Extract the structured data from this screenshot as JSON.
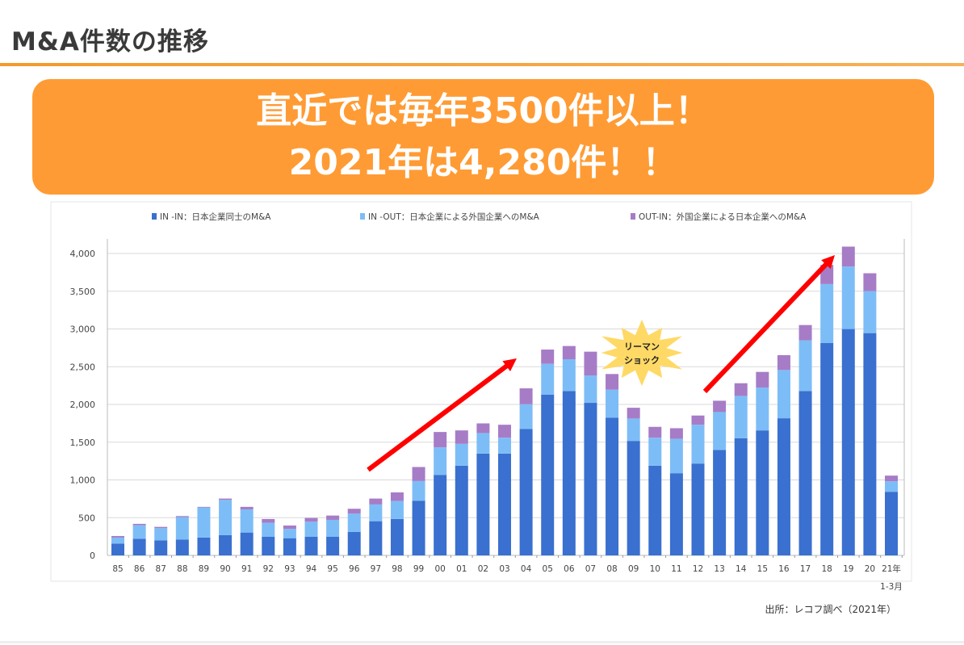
{
  "header": {
    "title": "M&A件数の推移"
  },
  "banner": {
    "line1": "直近では毎年3500件以上！",
    "line2": "2021年は4,280件！！"
  },
  "annotation": {
    "lehman_line1": "リーマン",
    "lehman_line2": "ショック"
  },
  "source": "出所：レコフ調べ（2021年）",
  "colors": {
    "in_in": "#3a70cf",
    "in_out": "#7dbdf7",
    "out_in": "#a77cc6",
    "arrow": "#ff0000",
    "burst": "#ffd966",
    "banner": "#ff9b34"
  },
  "chart_data": {
    "type": "bar",
    "stacked": true,
    "categories": [
      "85",
      "86",
      "87",
      "88",
      "89",
      "90",
      "91",
      "92",
      "93",
      "94",
      "95",
      "96",
      "97",
      "98",
      "99",
      "00",
      "01",
      "02",
      "03",
      "04",
      "05",
      "06",
      "07",
      "08",
      "09",
      "10",
      "11",
      "12",
      "13",
      "14",
      "15",
      "16",
      "17",
      "18",
      "19",
      "20",
      "21年"
    ],
    "last_category_sublabel": "1-3月",
    "series": [
      {
        "name": "IN -IN：日本企業同士のM&A",
        "values": [
          157,
          221,
          200,
          211,
          236,
          268,
          303,
          246,
          228,
          246,
          246,
          311,
          453,
          482,
          725,
          1067,
          1189,
          1349,
          1349,
          1674,
          2131,
          2178,
          2021,
          1824,
          1517,
          1189,
          1089,
          1217,
          1396,
          1553,
          1656,
          1817,
          2178,
          2813,
          2999,
          2945,
          843
        ]
      },
      {
        "name": "IN -OUT：日本企業による外国企業へのM&A",
        "values": [
          79,
          179,
          161,
          296,
          400,
          467,
          307,
          186,
          122,
          200,
          225,
          242,
          222,
          239,
          260,
          365,
          289,
          272,
          211,
          329,
          407,
          421,
          364,
          372,
          297,
          371,
          457,
          514,
          503,
          560,
          568,
          639,
          671,
          782,
          828,
          557,
          139
        ]
      },
      {
        "name": "OUT-IN：外国企業による日本企業へのM&A",
        "values": [
          21,
          18,
          17,
          14,
          7,
          18,
          33,
          50,
          46,
          50,
          57,
          65,
          78,
          114,
          186,
          203,
          178,
          128,
          171,
          210,
          189,
          175,
          314,
          207,
          142,
          143,
          139,
          122,
          150,
          168,
          207,
          197,
          203,
          254,
          264,
          236,
          75
        ]
      }
    ],
    "ylim": [
      0,
      4000
    ],
    "yticks": [
      "0",
      "500",
      "1,000",
      "1,500",
      "2,000",
      "2,500",
      "3,000",
      "3,500",
      "4,000"
    ],
    "ytick_values": [
      0,
      500,
      1000,
      1500,
      2000,
      2500,
      3000,
      3500,
      4000
    ],
    "grid": true,
    "legend_position": "top",
    "xlabel": "",
    "ylabel": "",
    "title": ""
  }
}
